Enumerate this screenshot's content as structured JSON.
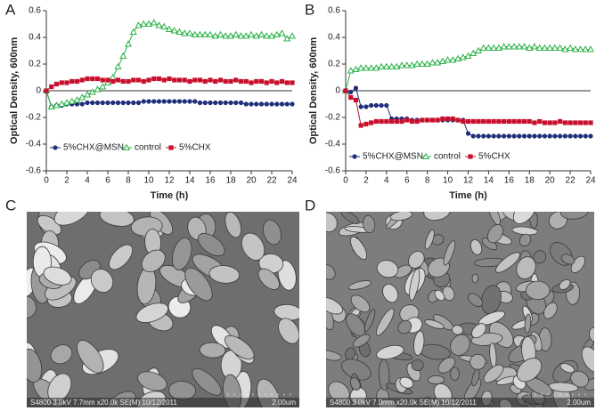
{
  "chart_data": [
    {
      "type": "line",
      "panel_label": "A",
      "xlabel": "Time (h)",
      "ylabel": "Optical Density, 600nm",
      "x": [
        0,
        0.5,
        1,
        1.5,
        2,
        2.5,
        3,
        3.5,
        4,
        4.5,
        5,
        5.5,
        6,
        6.5,
        7,
        7.5,
        8,
        8.5,
        9,
        9.5,
        10,
        10.5,
        11,
        11.5,
        12,
        12.5,
        13,
        13.5,
        14,
        14.5,
        15,
        15.5,
        16,
        16.5,
        17,
        17.5,
        18,
        18.5,
        19,
        19.5,
        20,
        20.5,
        21,
        21.5,
        22,
        22.5,
        23,
        23.5,
        24
      ],
      "xlim": [
        0,
        24
      ],
      "xticks": [
        0,
        2,
        4,
        6,
        8,
        10,
        12,
        14,
        16,
        18,
        20,
        22,
        24
      ],
      "ylim": [
        -0.6,
        0.6
      ],
      "yticks": [
        -0.6,
        -0.4,
        -0.2,
        0,
        0.2,
        0.4,
        0.6
      ],
      "grid": false,
      "legend": "lower left",
      "series": [
        {
          "name": "5%CHX@MSN",
          "color": "#1f2f7a",
          "marker": "circle",
          "values": [
            0,
            -0.12,
            -0.11,
            -0.11,
            -0.1,
            -0.1,
            -0.1,
            -0.1,
            -0.09,
            -0.09,
            -0.09,
            -0.09,
            -0.09,
            -0.09,
            -0.09,
            -0.09,
            -0.09,
            -0.09,
            -0.09,
            -0.08,
            -0.08,
            -0.08,
            -0.08,
            -0.08,
            -0.08,
            -0.08,
            -0.08,
            -0.08,
            -0.08,
            -0.08,
            -0.09,
            -0.09,
            -0.09,
            -0.09,
            -0.09,
            -0.09,
            -0.09,
            -0.09,
            -0.09,
            -0.1,
            -0.1,
            -0.1,
            -0.1,
            -0.1,
            -0.1,
            -0.1,
            -0.1,
            -0.1,
            -0.1
          ]
        },
        {
          "name": "control",
          "color": "#2db34a",
          "marker": "triangle",
          "values": [
            0,
            -0.12,
            -0.11,
            -0.1,
            -0.09,
            -0.08,
            -0.07,
            -0.05,
            -0.03,
            -0.01,
            0.01,
            0.03,
            0.06,
            0.1,
            0.18,
            0.26,
            0.35,
            0.44,
            0.49,
            0.5,
            0.5,
            0.51,
            0.49,
            0.48,
            0.46,
            0.45,
            0.44,
            0.43,
            0.43,
            0.42,
            0.42,
            0.42,
            0.42,
            0.41,
            0.42,
            0.41,
            0.41,
            0.42,
            0.41,
            0.41,
            0.42,
            0.41,
            0.42,
            0.41,
            0.41,
            0.42,
            0.43,
            0.39,
            0.41
          ]
        },
        {
          "name": "5%CHX",
          "color": "#c8102e",
          "marker": "square",
          "values": [
            0,
            0.03,
            0.05,
            0.06,
            0.06,
            0.07,
            0.07,
            0.08,
            0.09,
            0.09,
            0.09,
            0.08,
            0.08,
            0.07,
            0.08,
            0.07,
            0.07,
            0.08,
            0.08,
            0.07,
            0.08,
            0.09,
            0.09,
            0.08,
            0.09,
            0.08,
            0.08,
            0.08,
            0.07,
            0.08,
            0.08,
            0.07,
            0.08,
            0.07,
            0.08,
            0.07,
            0.07,
            0.08,
            0.07,
            0.07,
            0.06,
            0.07,
            0.07,
            0.06,
            0.07,
            0.06,
            0.07,
            0.06,
            0.06
          ]
        }
      ]
    },
    {
      "type": "line",
      "panel_label": "B",
      "xlabel": "Time (h)",
      "ylabel": "Optical Density, 600nm",
      "x": [
        0,
        0.5,
        1,
        1.5,
        2,
        2.5,
        3,
        3.5,
        4,
        4.5,
        5,
        5.5,
        6,
        6.5,
        7,
        7.5,
        8,
        8.5,
        9,
        9.5,
        10,
        10.5,
        11,
        11.5,
        12,
        12.5,
        13,
        13.5,
        14,
        14.5,
        15,
        15.5,
        16,
        16.5,
        17,
        17.5,
        18,
        18.5,
        19,
        19.5,
        20,
        20.5,
        21,
        21.5,
        22,
        22.5,
        23,
        23.5,
        24
      ],
      "xlim": [
        0,
        24
      ],
      "xticks": [
        0,
        2,
        4,
        6,
        8,
        10,
        12,
        14,
        16,
        18,
        20,
        22,
        24
      ],
      "ylim": [
        -0.6,
        0.6
      ],
      "yticks": [
        -0.6,
        -0.4,
        -0.2,
        0,
        0.2,
        0.4,
        0.6
      ],
      "grid": false,
      "legend": "lower left",
      "series": [
        {
          "name": "5%CHX@MSN",
          "color": "#1f2f7a",
          "marker": "circle",
          "values": [
            0,
            -0.01,
            0.02,
            -0.12,
            -0.12,
            -0.11,
            -0.11,
            -0.11,
            -0.11,
            -0.21,
            -0.21,
            -0.21,
            -0.21,
            -0.22,
            -0.22,
            -0.22,
            -0.22,
            -0.22,
            -0.22,
            -0.22,
            -0.22,
            -0.22,
            -0.22,
            -0.22,
            -0.32,
            -0.34,
            -0.34,
            -0.34,
            -0.34,
            -0.34,
            -0.34,
            -0.34,
            -0.34,
            -0.34,
            -0.34,
            -0.34,
            -0.34,
            -0.34,
            -0.34,
            -0.34,
            -0.34,
            -0.34,
            -0.34,
            -0.34,
            -0.34,
            -0.34,
            -0.34,
            -0.34,
            -0.34
          ]
        },
        {
          "name": "control",
          "color": "#2db34a",
          "marker": "triangle",
          "values": [
            0,
            0.15,
            0.16,
            0.17,
            0.17,
            0.17,
            0.17,
            0.18,
            0.18,
            0.18,
            0.18,
            0.19,
            0.19,
            0.19,
            0.2,
            0.2,
            0.2,
            0.21,
            0.21,
            0.22,
            0.23,
            0.23,
            0.24,
            0.25,
            0.26,
            0.28,
            0.3,
            0.32,
            0.32,
            0.32,
            0.32,
            0.33,
            0.33,
            0.33,
            0.33,
            0.33,
            0.32,
            0.33,
            0.32,
            0.32,
            0.32,
            0.32,
            0.32,
            0.31,
            0.32,
            0.31,
            0.31,
            0.31,
            0.31
          ]
        },
        {
          "name": "5%CHX",
          "color": "#c8102e",
          "marker": "square",
          "values": [
            0,
            -0.05,
            -0.07,
            -0.26,
            -0.25,
            -0.24,
            -0.23,
            -0.23,
            -0.23,
            -0.23,
            -0.23,
            -0.23,
            -0.22,
            -0.23,
            -0.23,
            -0.22,
            -0.22,
            -0.22,
            -0.22,
            -0.21,
            -0.21,
            -0.21,
            -0.22,
            -0.23,
            -0.23,
            -0.23,
            -0.23,
            -0.23,
            -0.23,
            -0.23,
            -0.23,
            -0.23,
            -0.23,
            -0.23,
            -0.23,
            -0.23,
            -0.23,
            -0.24,
            -0.23,
            -0.24,
            -0.24,
            -0.24,
            -0.23,
            -0.24,
            -0.24,
            -0.24,
            -0.24,
            -0.24,
            -0.24
          ]
        }
      ]
    }
  ],
  "images": [
    {
      "label": "C",
      "caption": "S4800 3.0kV 7.7mm x20.0k SE(M) 10/12/2011",
      "scale": "2.00um"
    },
    {
      "label": "D",
      "caption": "S4800 3.0kV 7.0mm x20.0k SE(M) 10/12/2011",
      "scale": "2.00um"
    }
  ]
}
